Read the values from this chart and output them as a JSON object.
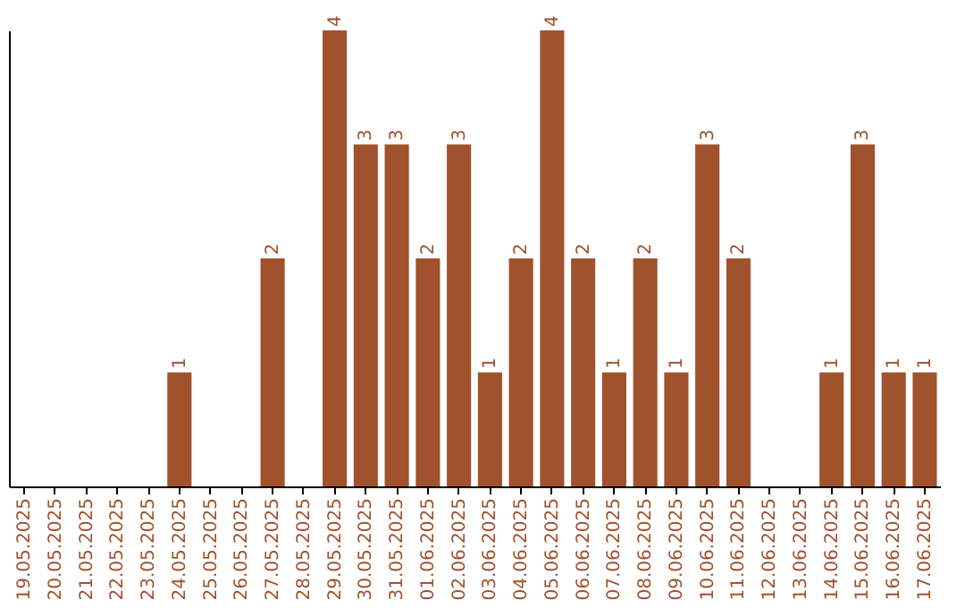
{
  "chart_data": {
    "type": "bar",
    "categories": [
      "19.05.2025",
      "20.05.2025",
      "21.05.2025",
      "22.05.2025",
      "23.05.2025",
      "24.05.2025",
      "25.05.2025",
      "26.05.2025",
      "27.05.2025",
      "28.05.2025",
      "29.05.2025",
      "30.05.2025",
      "31.05.2025",
      "01.06.2025",
      "02.06.2025",
      "03.06.2025",
      "04.06.2025",
      "05.06.2025",
      "06.06.2025",
      "07.06.2025",
      "08.06.2025",
      "09.06.2025",
      "10.06.2025",
      "11.06.2025",
      "12.06.2025",
      "13.06.2025",
      "14.06.2025",
      "15.06.2025",
      "16.06.2025",
      "17.06.2025"
    ],
    "values": [
      0,
      0,
      0,
      0,
      0,
      1,
      0,
      0,
      2,
      0,
      4,
      3,
      3,
      2,
      3,
      1,
      2,
      4,
      2,
      1,
      2,
      1,
      3,
      2,
      0,
      0,
      1,
      3,
      1,
      1
    ],
    "value_labels": [
      null,
      null,
      null,
      null,
      null,
      "1",
      null,
      null,
      "2",
      null,
      "4",
      "3",
      "3",
      "2",
      "3",
      "1",
      "2",
      "4",
      "2",
      "1",
      "2",
      "1",
      "3",
      "2",
      null,
      null,
      "1",
      "3",
      "1",
      "1"
    ],
    "color": "#a0522d",
    "ylim": [
      0,
      4
    ],
    "tick_labels": "x",
    "grid": false
  }
}
